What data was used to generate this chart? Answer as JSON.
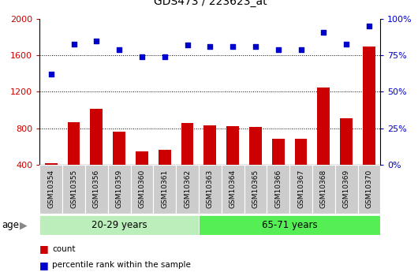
{
  "title": "GDS473 / 223623_at",
  "samples": [
    "GSM10354",
    "GSM10355",
    "GSM10356",
    "GSM10359",
    "GSM10360",
    "GSM10361",
    "GSM10362",
    "GSM10363",
    "GSM10364",
    "GSM10365",
    "GSM10366",
    "GSM10367",
    "GSM10368",
    "GSM10369",
    "GSM10370"
  ],
  "counts": [
    415,
    870,
    1010,
    760,
    545,
    560,
    855,
    830,
    820,
    810,
    680,
    680,
    1250,
    910,
    1700
  ],
  "percentile": [
    62,
    83,
    85,
    79,
    74,
    74,
    82,
    81,
    81,
    81,
    79,
    79,
    91,
    83,
    95
  ],
  "group1_label": "20-29 years",
  "group2_label": "65-71 years",
  "group1_count": 7,
  "group2_count": 8,
  "ylim_left": [
    400,
    2000
  ],
  "ylim_right": [
    0,
    100
  ],
  "yticks_left": [
    400,
    800,
    1200,
    1600,
    2000
  ],
  "yticks_right": [
    0,
    25,
    50,
    75,
    100
  ],
  "bar_color": "#cc0000",
  "dot_color": "#0000cc",
  "group1_bg": "#bbeebb",
  "group2_bg": "#55ee55",
  "tick_bg": "#cccccc",
  "legend_bar_label": "count",
  "legend_dot_label": "percentile rank within the sample",
  "age_label": "age",
  "title_color": "#000000",
  "title_fontsize": 10,
  "tick_fontsize": 6.5,
  "group_fontsize": 8.5
}
